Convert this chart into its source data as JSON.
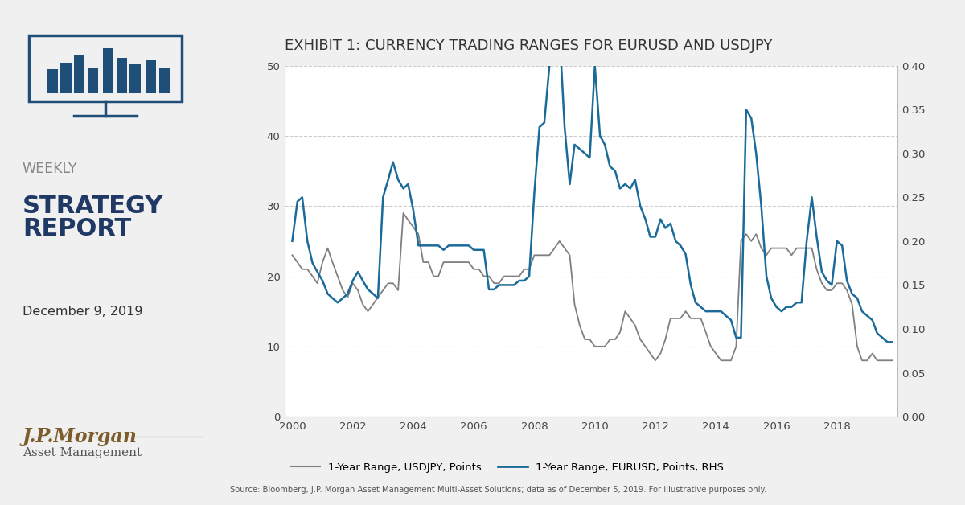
{
  "title": "EXHIBIT 1: CURRENCY TRADING RANGES FOR EURUSD AND USDJPY",
  "left_panel_bg": "#e8e8e8",
  "right_panel_bg": "#f5f5f5",
  "sidebar_title1": "WEEKLY",
  "sidebar_title2": "STRATEGY\nREPORT",
  "sidebar_date": "December 9, 2019",
  "source_text": "Source: Bloomberg, J.P. Morgan Asset Management Multi-Asset Solutions; data as of December 5, 2019. For illustrative purposes only.",
  "legend1": "1-Year Range, USDJPY, Points",
  "legend2": "1-Year Range, EURUSD, Points, RHS",
  "color_usdjpy": "#7f7f7f",
  "color_eurusd": "#1a6b9a",
  "ylim_left": [
    0,
    50
  ],
  "ylim_right": [
    0.0,
    0.4
  ],
  "yticks_left": [
    0,
    10,
    20,
    30,
    40,
    50
  ],
  "yticks_right": [
    0.0,
    0.05,
    0.1,
    0.15,
    0.2,
    0.25,
    0.3,
    0.35,
    0.4
  ],
  "title_color": "#333333",
  "title_fontsize": 13,
  "grid_color": "#cccccc",
  "grid_style": "--",
  "usdjpy_years": [
    2000.0,
    2000.17,
    2000.33,
    2000.5,
    2000.67,
    2000.83,
    2001.0,
    2001.17,
    2001.33,
    2001.5,
    2001.67,
    2001.83,
    2002.0,
    2002.17,
    2002.33,
    2002.5,
    2002.67,
    2002.83,
    2003.0,
    2003.17,
    2003.33,
    2003.5,
    2003.67,
    2003.83,
    2004.0,
    2004.17,
    2004.33,
    2004.5,
    2004.67,
    2004.83,
    2005.0,
    2005.17,
    2005.33,
    2005.5,
    2005.67,
    2005.83,
    2006.0,
    2006.17,
    2006.33,
    2006.5,
    2006.67,
    2006.83,
    2007.0,
    2007.17,
    2007.33,
    2007.5,
    2007.67,
    2007.83,
    2008.0,
    2008.17,
    2008.33,
    2008.5,
    2008.67,
    2008.83,
    2009.0,
    2009.17,
    2009.33,
    2009.5,
    2009.67,
    2009.83,
    2010.0,
    2010.17,
    2010.33,
    2010.5,
    2010.67,
    2010.83,
    2011.0,
    2011.17,
    2011.33,
    2011.5,
    2011.67,
    2011.83,
    2012.0,
    2012.17,
    2012.33,
    2012.5,
    2012.67,
    2012.83,
    2013.0,
    2013.17,
    2013.33,
    2013.5,
    2013.67,
    2013.83,
    2014.0,
    2014.17,
    2014.33,
    2014.5,
    2014.67,
    2014.83,
    2015.0,
    2015.17,
    2015.33,
    2015.5,
    2015.67,
    2015.83,
    2016.0,
    2016.17,
    2016.33,
    2016.5,
    2016.67,
    2016.83,
    2017.0,
    2017.17,
    2017.33,
    2017.5,
    2017.67,
    2017.83,
    2018.0,
    2018.17,
    2018.33,
    2018.5,
    2018.67,
    2018.83,
    2019.0,
    2019.17,
    2019.33,
    2019.5,
    2019.67,
    2019.83
  ],
  "usdjpy_values": [
    23,
    22,
    21,
    21,
    20,
    19,
    22,
    24,
    22,
    20,
    18,
    17,
    19,
    18,
    16,
    15,
    16,
    17,
    18,
    19,
    19,
    18,
    29,
    28,
    27,
    26,
    22,
    22,
    20,
    20,
    22,
    22,
    22,
    22,
    22,
    22,
    21,
    21,
    20,
    20,
    19,
    19,
    20,
    20,
    20,
    20,
    21,
    21,
    23,
    23,
    23,
    23,
    24,
    25,
    24,
    23,
    16,
    13,
    11,
    11,
    10,
    10,
    10,
    11,
    11,
    12,
    15,
    14,
    13,
    11,
    10,
    9,
    8,
    9,
    11,
    14,
    14,
    14,
    15,
    14,
    14,
    14,
    12,
    10,
    9,
    8,
    8,
    8,
    10,
    25,
    26,
    25,
    26,
    24,
    23,
    24,
    24,
    24,
    24,
    23,
    24,
    24,
    24,
    24,
    21,
    19,
    18,
    18,
    19,
    19,
    18,
    16,
    10,
    8,
    8,
    9,
    8,
    8,
    8,
    8
  ],
  "eurusd_years": [
    2000.0,
    2000.17,
    2000.33,
    2000.5,
    2000.67,
    2000.83,
    2001.0,
    2001.17,
    2001.33,
    2001.5,
    2001.67,
    2001.83,
    2002.0,
    2002.17,
    2002.33,
    2002.5,
    2002.67,
    2002.83,
    2003.0,
    2003.17,
    2003.33,
    2003.5,
    2003.67,
    2003.83,
    2004.0,
    2004.17,
    2004.33,
    2004.5,
    2004.67,
    2004.83,
    2005.0,
    2005.17,
    2005.33,
    2005.5,
    2005.67,
    2005.83,
    2006.0,
    2006.17,
    2006.33,
    2006.5,
    2006.67,
    2006.83,
    2007.0,
    2007.17,
    2007.33,
    2007.5,
    2007.67,
    2007.83,
    2008.0,
    2008.17,
    2008.33,
    2008.5,
    2008.67,
    2008.83,
    2009.0,
    2009.17,
    2009.33,
    2009.5,
    2009.67,
    2009.83,
    2010.0,
    2010.17,
    2010.33,
    2010.5,
    2010.67,
    2010.83,
    2011.0,
    2011.17,
    2011.33,
    2011.5,
    2011.67,
    2011.83,
    2012.0,
    2012.17,
    2012.33,
    2012.5,
    2012.67,
    2012.83,
    2013.0,
    2013.17,
    2013.33,
    2013.5,
    2013.67,
    2013.83,
    2014.0,
    2014.17,
    2014.33,
    2014.5,
    2014.67,
    2014.83,
    2015.0,
    2015.17,
    2015.33,
    2015.5,
    2015.67,
    2015.83,
    2016.0,
    2016.17,
    2016.33,
    2016.5,
    2016.67,
    2016.83,
    2017.0,
    2017.17,
    2017.33,
    2017.5,
    2017.67,
    2017.83,
    2018.0,
    2018.17,
    2018.33,
    2018.5,
    2018.67,
    2018.83,
    2019.0,
    2019.17,
    2019.33,
    2019.5,
    2019.67,
    2019.83
  ],
  "eurusd_values": [
    0.2,
    0.245,
    0.25,
    0.2,
    0.175,
    0.165,
    0.155,
    0.14,
    0.135,
    0.13,
    0.135,
    0.14,
    0.155,
    0.165,
    0.155,
    0.145,
    0.14,
    0.135,
    0.25,
    0.27,
    0.29,
    0.27,
    0.26,
    0.265,
    0.235,
    0.195,
    0.195,
    0.195,
    0.195,
    0.195,
    0.19,
    0.195,
    0.195,
    0.195,
    0.195,
    0.195,
    0.19,
    0.19,
    0.19,
    0.145,
    0.145,
    0.15,
    0.15,
    0.15,
    0.15,
    0.155,
    0.155,
    0.16,
    0.255,
    0.33,
    0.335,
    0.4,
    0.44,
    0.44,
    0.33,
    0.265,
    0.31,
    0.305,
    0.3,
    0.295,
    0.4,
    0.32,
    0.31,
    0.285,
    0.28,
    0.26,
    0.265,
    0.26,
    0.27,
    0.24,
    0.225,
    0.205,
    0.205,
    0.225,
    0.215,
    0.22,
    0.2,
    0.195,
    0.185,
    0.15,
    0.13,
    0.125,
    0.12,
    0.12,
    0.12,
    0.12,
    0.115,
    0.11,
    0.09,
    0.09,
    0.35,
    0.34,
    0.3,
    0.24,
    0.16,
    0.135,
    0.125,
    0.12,
    0.125,
    0.125,
    0.13,
    0.13,
    0.2,
    0.25,
    0.205,
    0.165,
    0.155,
    0.15,
    0.2,
    0.195,
    0.155,
    0.14,
    0.135,
    0.12,
    0.115,
    0.11,
    0.095,
    0.09,
    0.085,
    0.085
  ]
}
